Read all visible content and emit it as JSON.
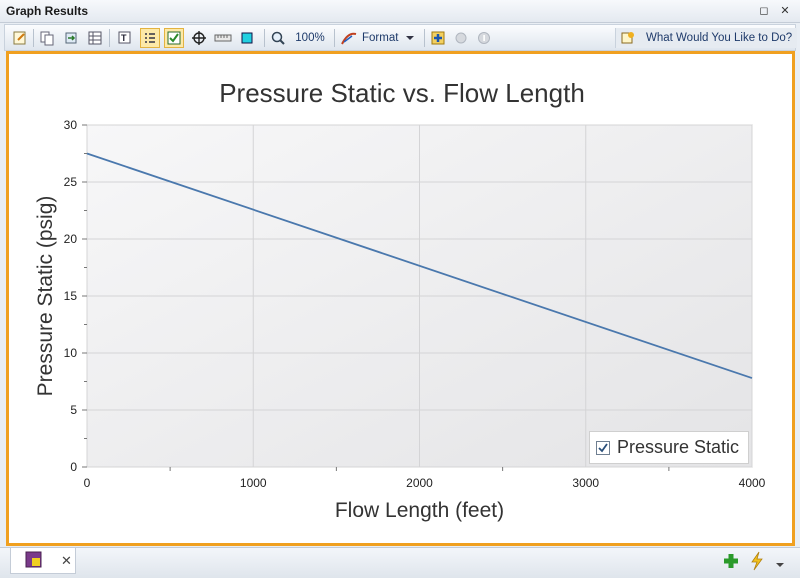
{
  "window": {
    "title": "Graph Results",
    "restore_glyph": "◻",
    "close_glyph": "✕"
  },
  "toolbar": {
    "zoom_level": "100%",
    "format_label": "Format",
    "help_link": "What Would You Like to Do?"
  },
  "chart_data": {
    "type": "line",
    "title": "Pressure Static vs. Flow Length",
    "xlabel": "Flow Length (feet)",
    "ylabel": "Pressure Static (psig)",
    "xlim": [
      0,
      4000
    ],
    "ylim": [
      0,
      30
    ],
    "xticks": [
      0,
      1000,
      2000,
      3000,
      4000
    ],
    "yticks": [
      0,
      5,
      10,
      15,
      20,
      25,
      30
    ],
    "grid": true,
    "legend_position": "bottom-right",
    "series": [
      {
        "name": "Pressure Static",
        "color": "#4a78ad",
        "x": [
          0,
          4000
        ],
        "y": [
          27.5,
          7.8
        ]
      }
    ]
  },
  "legend": {
    "label": "Pressure Static",
    "checked": true
  },
  "bottom": {
    "tab_close": "✕"
  },
  "colors": {
    "frame_accent": "#f0a020",
    "plot_background": "#ececee",
    "series_line": "#4a78ad"
  }
}
